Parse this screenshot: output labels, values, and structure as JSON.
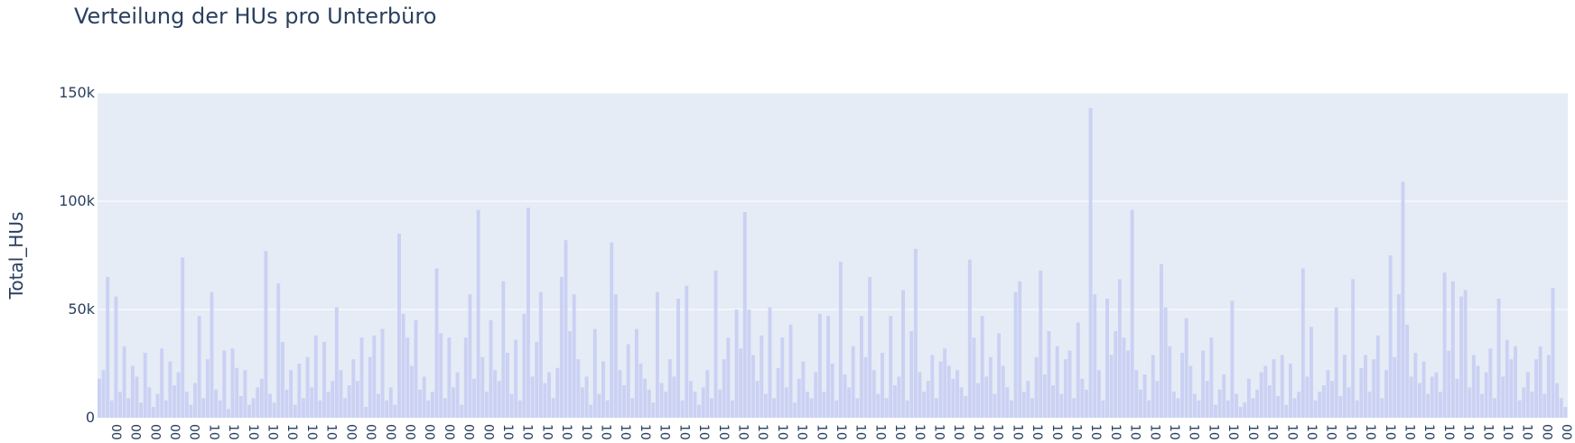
{
  "chart_data": {
    "type": "bar",
    "title": "Verteilung der HUs pro Unterbüro",
    "xlabel": "",
    "ylabel": "Total_HUs",
    "ylim": [
      0,
      150000
    ],
    "y_ticks": [
      0,
      50000,
      100000,
      150000
    ],
    "y_tick_labels": [
      "0",
      "50k",
      "100k",
      "150k"
    ],
    "x_tick_labels": [
      "00",
      "00",
      "00",
      "00",
      "00",
      "10",
      "10",
      "10",
      "10",
      "10",
      "10",
      "10",
      "00",
      "00",
      "00",
      "00",
      "00",
      "00",
      "00",
      "00",
      "10",
      "10",
      "10",
      "10",
      "10",
      "10",
      "10",
      "10",
      "10",
      "10",
      "10",
      "10",
      "10",
      "10",
      "10",
      "10",
      "10",
      "10",
      "10",
      "10",
      "10",
      "10",
      "10",
      "10",
      "10",
      "10",
      "10",
      "10",
      "10",
      "10",
      "10",
      "10",
      "10",
      "10",
      "10",
      "10",
      "10",
      "10",
      "10",
      "10",
      "10",
      "10",
      "10",
      "10",
      "10",
      "10",
      "10",
      "10",
      "10",
      "10",
      "10",
      "10",
      "10",
      "00",
      "00"
    ],
    "values": [
      18000,
      22000,
      65000,
      8000,
      56000,
      12000,
      33000,
      9000,
      24000,
      19000,
      7000,
      30000,
      14000,
      5000,
      11000,
      32000,
      8000,
      26000,
      15000,
      21000,
      74000,
      12000,
      6000,
      16000,
      47000,
      9000,
      27000,
      58000,
      13000,
      8000,
      31000,
      4000,
      32000,
      23000,
      10000,
      22000,
      6000,
      9000,
      14000,
      18000,
      77000,
      11000,
      7000,
      62000,
      35000,
      13000,
      22000,
      6000,
      25000,
      9000,
      28000,
      14000,
      38000,
      8000,
      35000,
      12000,
      17000,
      51000,
      22000,
      9000,
      15000,
      27000,
      17000,
      37000,
      5000,
      28000,
      38000,
      11000,
      41000,
      8000,
      14000,
      6000,
      85000,
      48000,
      37000,
      24000,
      45000,
      13000,
      19000,
      8000,
      12000,
      69000,
      39000,
      9000,
      37000,
      14000,
      21000,
      6000,
      37000,
      57000,
      18000,
      96000,
      28000,
      12000,
      45000,
      22000,
      17000,
      63000,
      30000,
      11000,
      36000,
      8000,
      48000,
      97000,
      19000,
      35000,
      58000,
      16000,
      21000,
      9000,
      23000,
      65000,
      82000,
      40000,
      57000,
      27000,
      14000,
      19000,
      6000,
      41000,
      11000,
      26000,
      8000,
      81000,
      57000,
      22000,
      15000,
      34000,
      9000,
      41000,
      25000,
      18000,
      13000,
      7000,
      58000,
      16000,
      12000,
      27000,
      19000,
      55000,
      8000,
      61000,
      17000,
      12000,
      6000,
      14000,
      22000,
      9000,
      68000,
      13000,
      27000,
      37000,
      8000,
      50000,
      32000,
      95000,
      50000,
      29000,
      17000,
      38000,
      11000,
      51000,
      9000,
      23000,
      37000,
      14000,
      43000,
      7000,
      18000,
      26000,
      12000,
      9000,
      21000,
      48000,
      12000,
      47000,
      25000,
      8000,
      72000,
      20000,
      14000,
      33000,
      9000,
      47000,
      28000,
      65000,
      22000,
      11000,
      30000,
      9000,
      47000,
      15000,
      19000,
      59000,
      8000,
      40000,
      78000,
      21000,
      12000,
      17000,
      29000,
      9000,
      26000,
      32000,
      24000,
      18000,
      22000,
      14000,
      10000,
      73000,
      37000,
      16000,
      47000,
      19000,
      28000,
      11000,
      39000,
      24000,
      14000,
      8000,
      58000,
      63000,
      12000,
      17000,
      9000,
      28000,
      68000,
      20000,
      40000,
      15000,
      33000,
      11000,
      27000,
      31000,
      9000,
      44000,
      18000,
      13000,
      143000,
      57000,
      22000,
      8000,
      55000,
      29000,
      40000,
      64000,
      37000,
      31000,
      96000,
      22000,
      13000,
      20000,
      8000,
      29000,
      17000,
      71000,
      51000,
      33000,
      12000,
      9000,
      30000,
      46000,
      24000,
      11000,
      8000,
      31000,
      17000,
      37000,
      6000,
      13000,
      20000,
      8000,
      54000,
      11000,
      5000,
      7000,
      18000,
      9000,
      13000,
      21000,
      24000,
      15000,
      27000,
      10000,
      29000,
      6000,
      25000,
      9000,
      12000,
      69000,
      19000,
      42000,
      8000,
      12000,
      15000,
      22000,
      17000,
      51000,
      10000,
      29000,
      14000,
      64000,
      8000,
      23000,
      29000,
      12000,
      27000,
      38000,
      9000,
      22000,
      75000,
      28000,
      57000,
      109000,
      43000,
      19000,
      30000,
      16000,
      26000,
      11000,
      19000,
      21000,
      12000,
      67000,
      31000,
      63000,
      18000,
      56000,
      59000,
      14000,
      29000,
      24000,
      11000,
      21000,
      32000,
      9000,
      55000,
      19000,
      36000,
      27000,
      33000,
      8000,
      14000,
      21000,
      12000,
      27000,
      33000,
      11000,
      29000,
      60000,
      16000,
      9000,
      5000
    ]
  }
}
